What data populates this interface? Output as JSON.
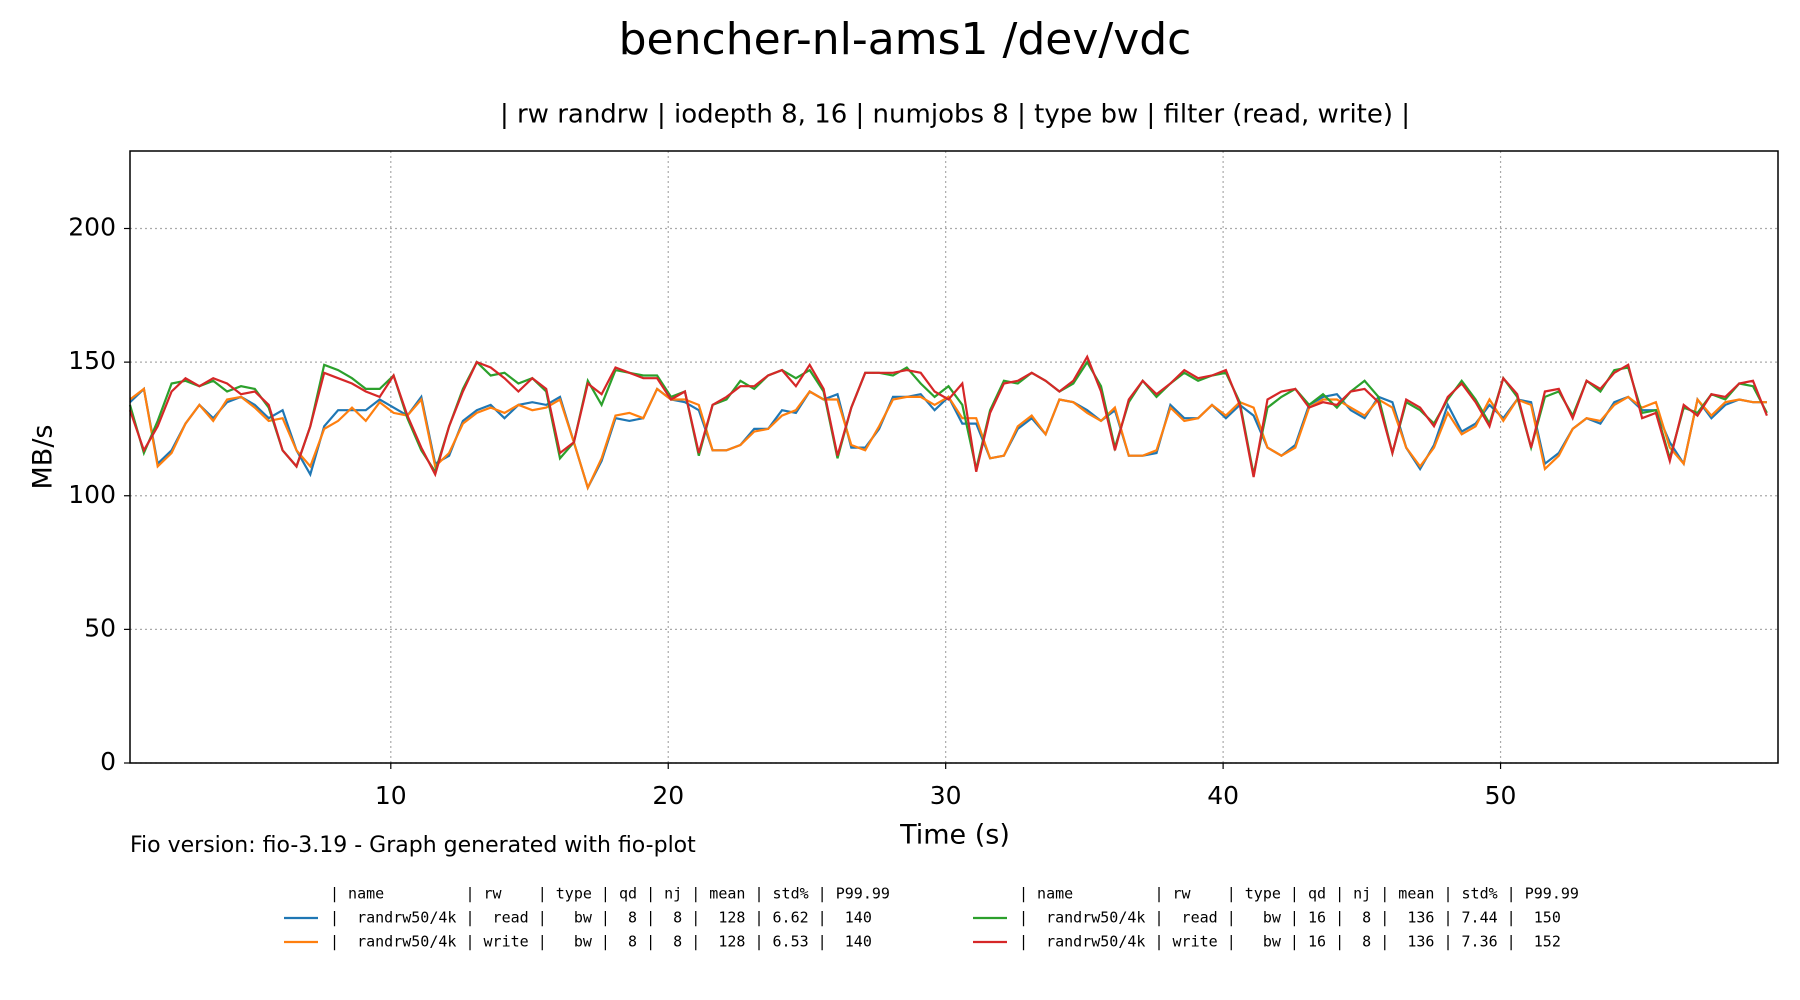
{
  "chart_data": {
    "type": "line",
    "title": "bencher-nl-ams1 /dev/vdc",
    "subtitle": "| rw randrw | iodepth 8, 16 | numjobs 8 | type bw | filter (read, write) |",
    "x_label": "Time (s)",
    "y_label": "MB/s",
    "footer": "Fio version: fio-3.19 - Graph generated with fio-plot",
    "legend_header": [
      "| name         | rw    | type | qd | nj | mean | std% | P99.99",
      "| name         | rw    | type | qd | nj | mean | std% | P99.99"
    ],
    "xlim": [
      0.6,
      60
    ],
    "ylim": [
      0,
      229
    ],
    "xticks": [
      10,
      20,
      30,
      40,
      50
    ],
    "yticks": [
      0,
      50,
      100,
      150,
      200
    ],
    "grid": true,
    "x": [
      0.6,
      1.1,
      1.6,
      2.1,
      2.6,
      3.1,
      3.6,
      4.1,
      4.6,
      5.1,
      5.6,
      6.1,
      6.6,
      7.1,
      7.6,
      8.1,
      8.6,
      9.1,
      9.6,
      10.1,
      10.6,
      11.1,
      11.6,
      12.1,
      12.6,
      13.1,
      13.6,
      14.1,
      14.6,
      15.1,
      15.6,
      16.1,
      16.6,
      17.1,
      17.6,
      18.1,
      18.6,
      19.1,
      19.6,
      20.1,
      20.6,
      21.1,
      21.6,
      22.1,
      22.6,
      23.1,
      23.6,
      24.1,
      24.6,
      25.1,
      25.6,
      26.1,
      26.6,
      27.1,
      27.6,
      28.1,
      28.6,
      29.1,
      29.6,
      30.1,
      30.6,
      31.1,
      31.6,
      32.1,
      32.6,
      33.1,
      33.6,
      34.1,
      34.6,
      35.1,
      35.6,
      36.1,
      36.6,
      37.1,
      37.6,
      38.1,
      38.6,
      39.1,
      39.6,
      40.1,
      40.6,
      41.1,
      41.6,
      42.1,
      42.6,
      43.1,
      43.6,
      44.1,
      44.6,
      45.1,
      45.6,
      46.1,
      46.6,
      47.1,
      47.6,
      48.1,
      48.6,
      49.1,
      49.6,
      50.1,
      50.6,
      51.1,
      51.6,
      52.1,
      52.6,
      53.1,
      53.6,
      54.1,
      54.6,
      55.1,
      55.6,
      56.1,
      56.6,
      57.1,
      57.6,
      58.1,
      58.6,
      59.1,
      59.6
    ],
    "series": [
      {
        "name": "|  randrw50/4k |  read |   bw |  8 |  8 |  128 | 6.62 |  140",
        "color": "#1f77b4",
        "values": [
          135,
          140,
          112,
          117,
          127,
          134,
          129,
          135,
          137,
          134,
          129,
          132,
          117,
          108,
          126,
          132,
          132,
          132,
          136,
          133,
          130,
          137,
          112,
          115,
          128,
          132,
          134,
          129,
          134,
          135,
          134,
          137,
          120,
          103,
          113,
          129,
          128,
          129,
          140,
          136,
          135,
          132,
          117,
          117,
          119,
          125,
          125,
          132,
          131,
          139,
          136,
          138,
          118,
          118,
          125,
          137,
          137,
          138,
          132,
          137,
          127,
          127,
          114,
          115,
          125,
          129,
          123,
          136,
          135,
          132,
          128,
          132,
          115,
          115,
          116,
          134,
          129,
          129,
          134,
          129,
          134,
          130,
          118,
          115,
          119,
          134,
          137,
          138,
          132,
          129,
          137,
          135,
          118,
          110,
          119,
          134,
          124,
          127,
          134,
          129,
          136,
          135,
          112,
          116,
          125,
          129,
          127,
          135,
          137,
          132,
          132,
          120,
          112,
          136,
          129,
          134,
          136,
          135,
          135
        ]
      },
      {
        "name": "|  randrw50/4k | write |   bw |  8 |  8 |  128 | 6.53 |  140",
        "color": "#ff7f0e",
        "values": [
          136,
          140,
          111,
          116,
          127,
          134,
          128,
          136,
          137,
          133,
          128,
          129,
          117,
          111,
          125,
          128,
          133,
          128,
          135,
          131,
          130,
          136,
          111,
          116,
          127,
          131,
          133,
          131,
          134,
          132,
          133,
          136,
          120,
          103,
          114,
          130,
          131,
          129,
          140,
          136,
          136,
          134,
          117,
          117,
          119,
          124,
          125,
          130,
          132,
          139,
          136,
          136,
          119,
          117,
          126,
          136,
          137,
          137,
          134,
          137,
          129,
          129,
          114,
          115,
          126,
          130,
          123,
          136,
          135,
          131,
          128,
          133,
          115,
          115,
          117,
          133,
          128,
          129,
          134,
          130,
          135,
          133,
          118,
          115,
          118,
          133,
          136,
          136,
          133,
          130,
          136,
          133,
          118,
          111,
          118,
          131,
          123,
          126,
          136,
          128,
          136,
          134,
          110,
          115,
          125,
          129,
          128,
          134,
          137,
          133,
          135,
          118,
          112,
          136,
          130,
          135,
          136,
          135,
          135
        ]
      },
      {
        "name": "|  randrw50/4k |  read |   bw | 16 |  8 |  136 | 7.44 |  150",
        "color": "#2ca02c",
        "values": [
          134,
          116,
          128,
          142,
          143,
          141,
          143,
          139,
          141,
          140,
          133,
          117,
          111,
          126,
          149,
          147,
          144,
          140,
          140,
          145,
          129,
          117,
          109,
          126,
          140,
          150,
          145,
          146,
          142,
          144,
          139,
          114,
          120,
          143,
          134,
          147,
          146,
          145,
          145,
          137,
          139,
          115,
          134,
          136,
          143,
          140,
          145,
          147,
          144,
          147,
          139,
          114,
          133,
          146,
          146,
          145,
          148,
          142,
          137,
          141,
          134,
          110,
          132,
          143,
          142,
          146,
          143,
          139,
          142,
          150,
          141,
          118,
          135,
          143,
          137,
          142,
          146,
          143,
          145,
          146,
          135,
          108,
          133,
          137,
          140,
          134,
          138,
          133,
          139,
          143,
          137,
          116,
          135,
          132,
          127,
          136,
          143,
          136,
          127,
          144,
          137,
          118,
          137,
          139,
          130,
          143,
          139,
          147,
          148,
          131,
          132,
          114,
          133,
          131,
          138,
          136,
          142,
          141,
          131
        ]
      },
      {
        "name": "|  randrw50/4k | write |   bw | 16 |  8 |  136 | 7.36 |  152",
        "color": "#d62728",
        "values": [
          132,
          117,
          126,
          139,
          144,
          141,
          144,
          142,
          138,
          139,
          134,
          117,
          111,
          126,
          146,
          144,
          142,
          139,
          137,
          145,
          130,
          118,
          108,
          126,
          139,
          150,
          148,
          144,
          139,
          144,
          140,
          116,
          120,
          142,
          138,
          148,
          146,
          144,
          144,
          136,
          139,
          116,
          134,
          137,
          141,
          141,
          145,
          147,
          141,
          149,
          140,
          115,
          133,
          146,
          146,
          146,
          147,
          146,
          139,
          136,
          142,
          109,
          131,
          142,
          143,
          146,
          143,
          139,
          143,
          152,
          139,
          117,
          136,
          143,
          138,
          142,
          147,
          144,
          145,
          147,
          134,
          107,
          136,
          139,
          140,
          133,
          135,
          134,
          139,
          140,
          135,
          116,
          136,
          133,
          126,
          137,
          142,
          135,
          126,
          144,
          138,
          118,
          139,
          140,
          129,
          143,
          140,
          146,
          149,
          129,
          131,
          113,
          134,
          130,
          138,
          137,
          142,
          143,
          130
        ]
      }
    ]
  }
}
